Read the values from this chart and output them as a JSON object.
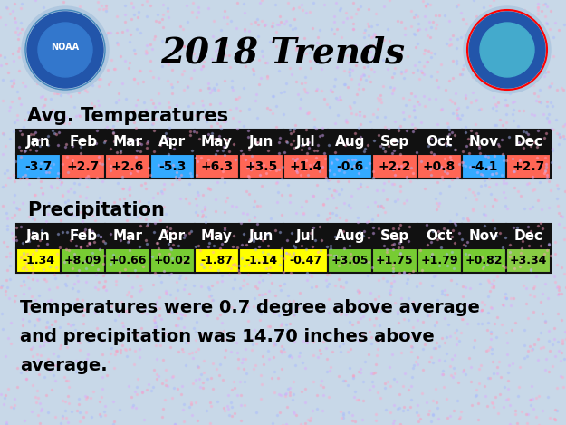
{
  "title": "2018 Trends",
  "months": [
    "Jan",
    "Feb",
    "Mar",
    "Apr",
    "May",
    "Jun",
    "Jul",
    "Aug",
    "Sep",
    "Oct",
    "Nov",
    "Dec"
  ],
  "temp_values": [
    "-3.7",
    "+2.7",
    "+2.6",
    "-5.3",
    "+6.3",
    "+3.5",
    "+1.4",
    "-0.6",
    "+2.2",
    "+0.8",
    "-4.1",
    "+2.7"
  ],
  "temp_colors": [
    "#33AAFF",
    "#FF6655",
    "#FF6655",
    "#33AAFF",
    "#FF6655",
    "#FF6655",
    "#FF6655",
    "#33AAFF",
    "#FF6655",
    "#FF6655",
    "#33AAFF",
    "#FF6655"
  ],
  "precip_values": [
    "-1.34",
    "+8.09",
    "+0.66",
    "+0.02",
    "-1.87",
    "-1.14",
    "-0.47",
    "+3.05",
    "+1.75",
    "+1.79",
    "+0.82",
    "+3.34"
  ],
  "precip_colors": [
    "#FFFF00",
    "#77CC33",
    "#77CC33",
    "#77CC33",
    "#FFFF00",
    "#FFFF00",
    "#FFFF00",
    "#77CC33",
    "#77CC33",
    "#77CC33",
    "#77CC33",
    "#88CC44"
  ],
  "temp_section_label": "Avg. Temperatures",
  "precip_section_label": "Precipitation",
  "summary_text": "Temperatures were 0.7 degree above average\nand precipitation was 14.70 inches above\naverage.",
  "bg_color": "#C8D8E8",
  "header_bg": "#111111",
  "header_fg": "#FFFFFF",
  "cell_border": "#111111",
  "fig_width": 6.25,
  "fig_height": 4.69,
  "dpi": 100
}
